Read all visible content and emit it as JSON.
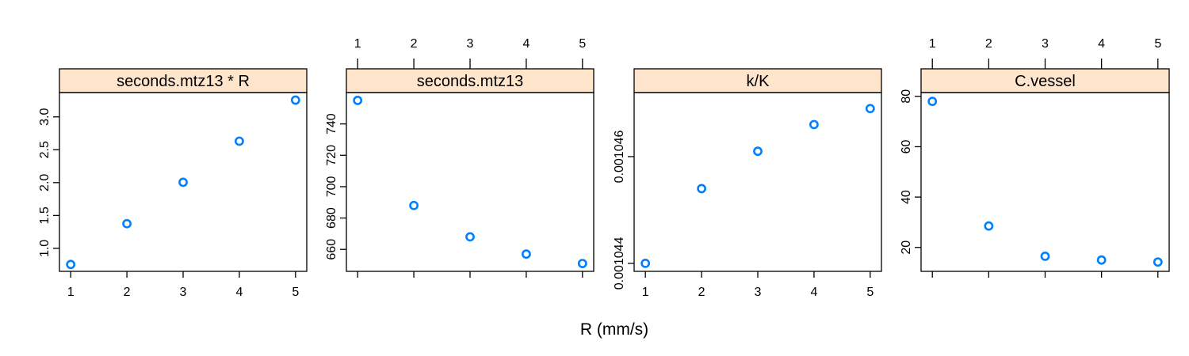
{
  "chart_data": {
    "type": "scatter",
    "xlabel": "R (mm/s)",
    "colors": {
      "points": "#0080ff",
      "strip": "#ffe5cc"
    },
    "panels": [
      {
        "title": "seconds.mtz13 * R",
        "x": [
          1,
          2,
          3,
          4,
          5
        ],
        "y": [
          0.755,
          1.375,
          2.005,
          2.63,
          3.255
        ],
        "xlim": [
          0.8,
          5.2
        ],
        "ylim": [
          0.65,
          3.37
        ],
        "x_ticks": [
          "1",
          "2",
          "3",
          "4",
          "5"
        ],
        "y_ticks": [
          {
            "v": 1.0,
            "label": "1.0"
          },
          {
            "v": 1.5,
            "label": "1.5"
          },
          {
            "v": 2.0,
            "label": "2.0"
          },
          {
            "v": 2.5,
            "label": "2.5"
          },
          {
            "v": 3.0,
            "label": "3.0"
          }
        ],
        "y_tick_side": "left",
        "x_tick_side": "bottom"
      },
      {
        "title": "seconds.mtz13",
        "x": [
          1,
          2,
          3,
          4,
          5
        ],
        "y": [
          755,
          688,
          668,
          657,
          651
        ],
        "xlim": [
          0.8,
          5.2
        ],
        "ylim": [
          646,
          760
        ],
        "x_ticks": [
          "1",
          "2",
          "3",
          "4",
          "5"
        ],
        "y_ticks": [
          {
            "v": 660,
            "label": "660"
          },
          {
            "v": 680,
            "label": "680"
          },
          {
            "v": 700,
            "label": "700"
          },
          {
            "v": 720,
            "label": "720"
          },
          {
            "v": 740,
            "label": "740"
          }
        ],
        "y_tick_side": "left",
        "x_tick_side": "top"
      },
      {
        "title": "k/K",
        "x": [
          1,
          2,
          3,
          4,
          5
        ],
        "y": [
          0.001044,
          0.0010454,
          0.0010461,
          0.0010466,
          0.0010469
        ],
        "xlim": [
          0.8,
          5.2
        ],
        "ylim": [
          0.00104385,
          0.0010472
        ],
        "x_ticks": [
          "1",
          "2",
          "3",
          "4",
          "5"
        ],
        "y_ticks": [
          {
            "v": 0.001044,
            "label": "0.001044"
          },
          {
            "v": 0.001046,
            "label": "0.001046"
          }
        ],
        "y_tick_side": "left",
        "x_tick_side": "bottom"
      },
      {
        "title": "C.vessel",
        "x": [
          1,
          2,
          3,
          4,
          5
        ],
        "y": [
          78,
          28.5,
          16.5,
          15,
          14.2
        ],
        "xlim": [
          0.8,
          5.2
        ],
        "ylim": [
          10.5,
          81.5
        ],
        "x_ticks": [
          "1",
          "2",
          "3",
          "4",
          "5"
        ],
        "y_ticks": [
          {
            "v": 20,
            "label": "20"
          },
          {
            "v": 40,
            "label": "40"
          },
          {
            "v": 60,
            "label": "60"
          },
          {
            "v": 80,
            "label": "80"
          }
        ],
        "y_tick_side": "left",
        "x_tick_side": "top"
      }
    ]
  }
}
